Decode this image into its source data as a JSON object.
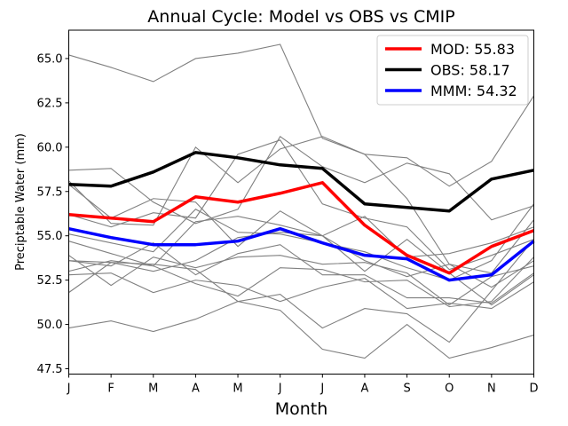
{
  "chart_data": {
    "type": "line",
    "title": "Annual Cycle: Model vs OBS vs CMIP",
    "xlabel": "Month",
    "ylabel": "Preciptable Water (mm)",
    "categories": [
      "J",
      "F",
      "M",
      "A",
      "M",
      "J",
      "J",
      "A",
      "S",
      "O",
      "N",
      "D"
    ],
    "ylim": [
      47.2,
      66.6
    ],
    "yticks": [
      47.5,
      50.0,
      52.5,
      55.0,
      57.5,
      60.0,
      62.5,
      65.0
    ],
    "ytick_labels": [
      "47.5",
      "50.0",
      "52.5",
      "55.0",
      "57.5",
      "60.0",
      "62.5",
      "65.0"
    ],
    "legend_position": "top-right",
    "colors": {
      "MOD": "#ff0000",
      "OBS": "#000000",
      "MMM": "#0000ff",
      "CMIP": "#808080"
    },
    "series": [
      {
        "name": "MOD",
        "legend": "MOD: 55.83",
        "values": [
          56.2,
          56.0,
          55.8,
          57.2,
          56.9,
          57.4,
          58.0,
          55.6,
          53.9,
          52.9,
          54.4,
          55.3
        ]
      },
      {
        "name": "OBS",
        "legend": "OBS: 58.17",
        "values": [
          57.9,
          57.8,
          58.6,
          59.7,
          59.4,
          59.0,
          58.8,
          56.8,
          56.6,
          56.4,
          58.2,
          58.7
        ]
      },
      {
        "name": "MMM",
        "legend": "MMM: 54.32",
        "values": [
          55.4,
          54.9,
          54.5,
          54.5,
          54.7,
          55.4,
          54.6,
          53.9,
          53.7,
          52.5,
          52.8,
          54.7
        ]
      }
    ],
    "cmip_models": [
      [
        65.2,
        64.5,
        63.7,
        65.0,
        65.3,
        65.8,
        60.5,
        59.6,
        59.4,
        57.8,
        59.2,
        62.9
      ],
      [
        58.7,
        58.8,
        56.9,
        55.7,
        56.5,
        60.6,
        58.9,
        58.0,
        59.1,
        58.5,
        55.9,
        56.7
      ],
      [
        58.1,
        55.7,
        55.6,
        60.0,
        58.0,
        59.9,
        60.6,
        59.6,
        57.1,
        53.4,
        52.9,
        55.9
      ],
      [
        56.2,
        55.5,
        56.3,
        56.0,
        59.6,
        60.4,
        56.8,
        56.0,
        55.5,
        53.1,
        53.9,
        54.8
      ],
      [
        57.9,
        56.0,
        57.1,
        56.9,
        54.4,
        56.4,
        55.0,
        53.0,
        54.8,
        52.9,
        51.1,
        52.8
      ],
      [
        55.1,
        54.6,
        54.1,
        56.5,
        55.2,
        55.1,
        54.6,
        54.1,
        53.2,
        52.5,
        53.6,
        56.8
      ],
      [
        54.7,
        54.0,
        53.3,
        55.8,
        56.1,
        55.6,
        55.0,
        56.1,
        53.8,
        54.0,
        54.6,
        55.5
      ],
      [
        53.6,
        53.5,
        53.0,
        53.6,
        54.9,
        55.2,
        55.0,
        53.6,
        52.7,
        53.4,
        52.1,
        53.6
      ],
      [
        53.9,
        52.2,
        53.8,
        53.2,
        53.8,
        53.9,
        53.4,
        53.5,
        52.9,
        51.1,
        52.7,
        53.3
      ],
      [
        53.6,
        53.3,
        54.6,
        52.8,
        54.0,
        54.5,
        52.8,
        52.8,
        51.5,
        51.5,
        51.2,
        52.9
      ],
      [
        53.0,
        53.6,
        53.3,
        52.3,
        51.6,
        53.2,
        53.1,
        52.4,
        52.5,
        51.0,
        51.3,
        53.8
      ],
      [
        52.8,
        52.9,
        51.8,
        52.5,
        52.2,
        51.3,
        52.1,
        52.6,
        50.9,
        51.2,
        50.9,
        52.4
      ],
      [
        51.8,
        53.5,
        53.4,
        53.1,
        51.3,
        51.7,
        49.8,
        50.9,
        50.6,
        49.0,
        51.9,
        54.8
      ],
      [
        49.8,
        50.2,
        49.6,
        50.3,
        51.3,
        50.8,
        48.6,
        48.1,
        50.0,
        48.1,
        48.7,
        49.4
      ]
    ]
  }
}
